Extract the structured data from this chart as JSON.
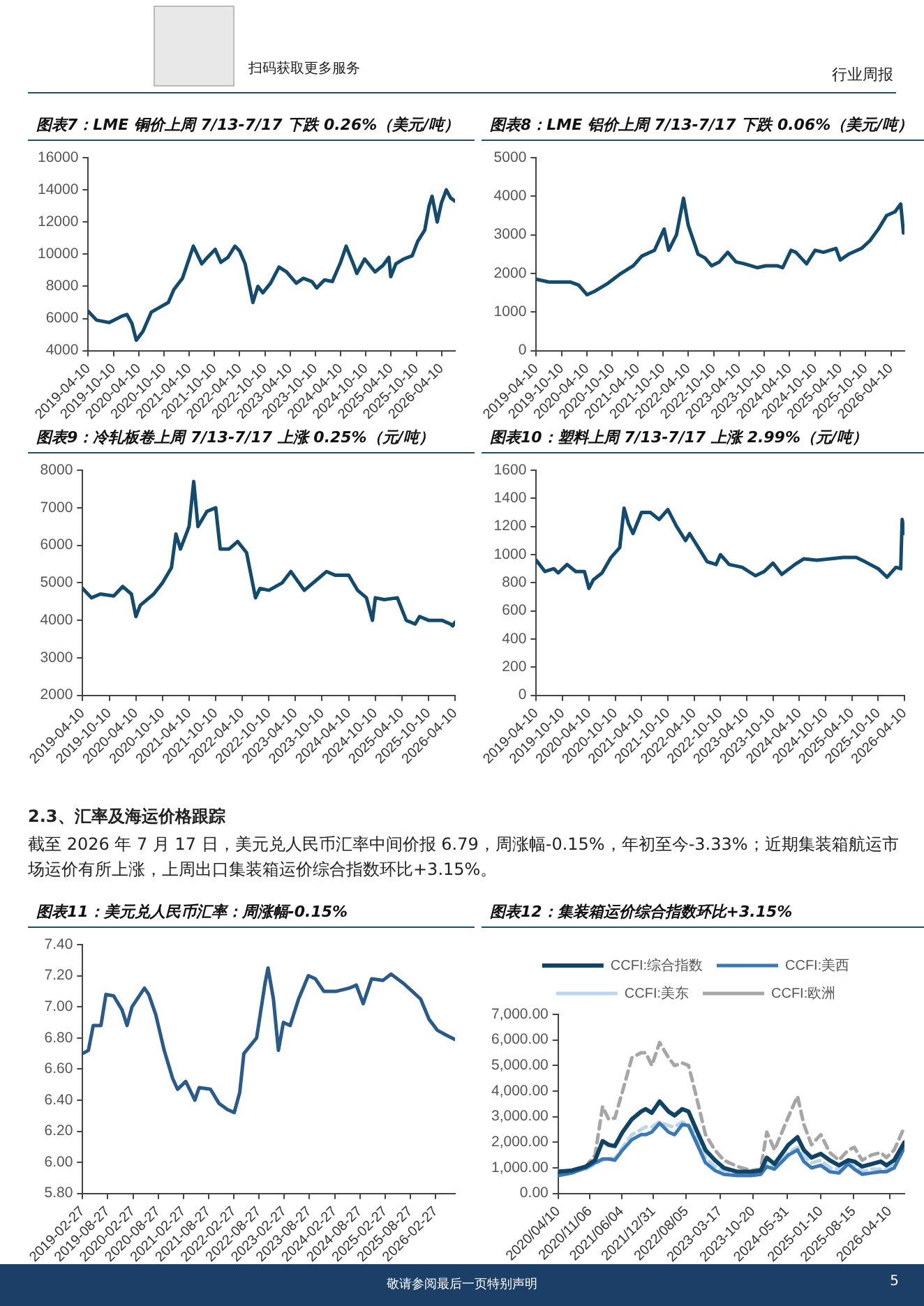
{
  "chart_data": [
    {
      "type": "line",
      "title": "图表7：LME 铜价上周 7/13-7/17 下跌 0.26%（美元/吨）",
      "marker": "none",
      "x": [
        "2019-04-10",
        "2019-06-10",
        "2019-09-10",
        "2019-12-10",
        "2020-01-15",
        "2020-02-20",
        "2020-03-23",
        "2020-05-10",
        "2020-07-10",
        "2020-09-10",
        "2020-11-10",
        "2020-12-20",
        "2021-02-20",
        "2021-05-10",
        "2021-07-10",
        "2021-08-20",
        "2021-10-15",
        "2021-11-25",
        "2022-01-15",
        "2022-03-07",
        "2022-04-10",
        "2022-05-20",
        "2022-07-15",
        "2022-08-20",
        "2022-09-25",
        "2022-11-20",
        "2023-01-20",
        "2023-03-15",
        "2023-05-25",
        "2023-07-15",
        "2023-09-15",
        "2023-10-20",
        "2023-12-15",
        "2024-02-10",
        "2024-04-10",
        "2024-05-20",
        "2024-07-15",
        "2024-08-05",
        "2024-10-01",
        "2024-12-15",
        "2025-02-10",
        "2025-03-25",
        "2025-04-08",
        "2025-05-15",
        "2025-07-10",
        "2025-09-10",
        "2025-10-20",
        "2025-12-10",
        "2026-01-10",
        "2026-02-01",
        "2026-03-10",
        "2026-04-10",
        "2026-05-15",
        "2026-06-15",
        "2026-07-17"
      ],
      "series": [
        {
          "color": "#124b6e",
          "values": [
            6450,
            5900,
            5750,
            6150,
            6250,
            5700,
            4650,
            5200,
            6400,
            6700,
            7000,
            7800,
            8500,
            10500,
            9400,
            9800,
            10300,
            9500,
            9800,
            10500,
            10200,
            9400,
            7000,
            8000,
            7600,
            8200,
            9200,
            8900,
            8200,
            8500,
            8300,
            7900,
            8400,
            8300,
            9500,
            10500,
            9300,
            8800,
            9700,
            8900,
            9300,
            9800,
            8600,
            9400,
            9700,
            9900,
            10800,
            11500,
            13000,
            13600,
            12000,
            13200,
            14000,
            13500,
            13300
          ]
        }
      ],
      "xlim": [
        "2019-04-10",
        "2026-07-17"
      ],
      "xticks": [
        "2019-04-10",
        "2019-10-10",
        "2020-04-10",
        "2020-10-10",
        "2021-04-10",
        "2021-10-10",
        "2022-04-10",
        "2022-10-10",
        "2023-04-10",
        "2023-10-10",
        "2024-04-10",
        "2024-10-10",
        "2025-04-10",
        "2025-10-10",
        "2026-04-10"
      ],
      "ylim": [
        4000,
        16000
      ],
      "yticks": [
        4000,
        6000,
        8000,
        10000,
        12000,
        14000,
        16000
      ]
    },
    {
      "type": "line",
      "title": "图表8：LME 铝价上周 7/13-7/17 下跌 0.06%（美元/吨）",
      "marker": "none",
      "x": [
        "2019-04-10",
        "2019-07-10",
        "2019-12-10",
        "2020-02-10",
        "2020-04-10",
        "2020-06-10",
        "2020-09-10",
        "2020-12-10",
        "2021-03-10",
        "2021-05-10",
        "2021-08-10",
        "2021-10-18",
        "2021-11-20",
        "2022-01-15",
        "2022-03-07",
        "2022-04-10",
        "2022-06-20",
        "2022-08-10",
        "2022-09-25",
        "2022-11-20",
        "2023-01-20",
        "2023-03-20",
        "2023-05-20",
        "2023-08-20",
        "2023-10-20",
        "2024-01-10",
        "2024-02-20",
        "2024-04-20",
        "2024-05-25",
        "2024-08-10",
        "2024-10-10",
        "2024-12-10",
        "2025-03-10",
        "2025-04-10",
        "2025-06-10",
        "2025-09-10",
        "2025-11-10",
        "2026-01-10",
        "2026-03-10",
        "2026-05-10",
        "2026-06-20",
        "2026-07-10",
        "2026-07-17"
      ],
      "series": [
        {
          "color": "#124b6e",
          "values": [
            1850,
            1780,
            1780,
            1700,
            1450,
            1550,
            1750,
            2000,
            2200,
            2450,
            2600,
            3150,
            2600,
            3000,
            3950,
            3250,
            2500,
            2400,
            2200,
            2300,
            2550,
            2300,
            2250,
            2150,
            2200,
            2200,
            2150,
            2600,
            2550,
            2250,
            2600,
            2550,
            2650,
            2350,
            2500,
            2650,
            2850,
            3150,
            3500,
            3600,
            3800,
            3050,
            3150
          ]
        }
      ],
      "xlim": [
        "2019-04-10",
        "2026-07-17"
      ],
      "xticks": [
        "2019-04-10",
        "2019-10-10",
        "2020-04-10",
        "2020-10-10",
        "2021-04-10",
        "2021-10-10",
        "2022-04-10",
        "2022-10-10",
        "2023-04-10",
        "2023-10-10",
        "2024-04-10",
        "2024-10-10",
        "2025-04-10",
        "2025-10-10",
        "2026-04-10"
      ],
      "ylim": [
        0,
        5000
      ],
      "yticks": [
        0,
        1000,
        2000,
        3000,
        4000,
        5000
      ]
    },
    {
      "type": "line",
      "title": "图表9：冷轧板卷上周 7/13-7/17 上涨 0.25%（元/吨）",
      "marker": "none",
      "x": [
        "2019-04-10",
        "2019-06-10",
        "2019-08-10",
        "2019-11-10",
        "2020-01-10",
        "2020-03-10",
        "2020-04-10",
        "2020-05-10",
        "2020-08-10",
        "2020-10-10",
        "2020-12-10",
        "2021-01-10",
        "2021-02-10",
        "2021-04-10",
        "2021-05-12",
        "2021-06-10",
        "2021-08-10",
        "2021-10-10",
        "2021-11-10",
        "2022-01-10",
        "2022-03-10",
        "2022-05-10",
        "2022-07-10",
        "2022-08-10",
        "2022-10-10",
        "2023-01-10",
        "2023-03-10",
        "2023-06-10",
        "2023-09-10",
        "2023-11-10",
        "2024-01-10",
        "2024-04-10",
        "2024-06-10",
        "2024-08-10",
        "2024-09-20",
        "2024-10-10",
        "2024-12-10",
        "2025-03-10",
        "2025-05-10",
        "2025-07-10",
        "2025-08-10",
        "2025-10-10",
        "2026-01-10",
        "2026-03-10",
        "2026-03-25",
        "2026-04-10"
      ],
      "series": [
        {
          "color": "#124b6e",
          "values": [
            4850,
            4600,
            4700,
            4650,
            4900,
            4700,
            4100,
            4400,
            4700,
            5000,
            5400,
            6300,
            5900,
            6500,
            7700,
            6500,
            6900,
            7000,
            5900,
            5900,
            6100,
            5800,
            4600,
            4850,
            4800,
            5000,
            5300,
            4800,
            5100,
            5300,
            5200,
            5200,
            4800,
            4600,
            4000,
            4600,
            4550,
            4600,
            4000,
            3900,
            4100,
            4000,
            4000,
            3900,
            3850,
            3950
          ]
        }
      ],
      "xlim": [
        "2019-04-10",
        "2026-04-10"
      ],
      "xticks": [
        "2019-04-10",
        "2019-10-10",
        "2020-04-10",
        "2020-10-10",
        "2021-04-10",
        "2021-10-10",
        "2022-04-10",
        "2022-10-10",
        "2023-04-10",
        "2023-10-10",
        "2024-04-10",
        "2024-10-10",
        "2025-04-10",
        "2025-10-10",
        "2026-04-10"
      ],
      "ylim": [
        2000,
        8000
      ],
      "yticks": [
        2000,
        3000,
        4000,
        5000,
        6000,
        7000,
        8000
      ]
    },
    {
      "type": "line",
      "title": "图表10：塑料上周 7/13-7/17 上涨 2.99%（元/吨）",
      "marker": "none",
      "x": [
        "2019-04-10",
        "2019-06-10",
        "2019-08-10",
        "2019-09-10",
        "2019-11-10",
        "2020-01-10",
        "2020-03-10",
        "2020-04-10",
        "2020-05-10",
        "2020-07-10",
        "2020-09-10",
        "2020-11-10",
        "2020-12-10",
        "2021-01-10",
        "2021-02-10",
        "2021-04-10",
        "2021-06-10",
        "2021-08-10",
        "2021-10-10",
        "2021-12-10",
        "2022-02-10",
        "2022-03-10",
        "2022-05-10",
        "2022-07-10",
        "2022-09-10",
        "2022-10-10",
        "2022-12-10",
        "2023-03-10",
        "2023-06-10",
        "2023-08-10",
        "2023-10-10",
        "2023-12-10",
        "2024-03-10",
        "2024-05-10",
        "2024-08-10",
        "2024-11-10",
        "2025-02-10",
        "2025-05-10",
        "2025-07-10",
        "2025-10-10",
        "2025-12-10",
        "2026-02-10",
        "2026-03-15",
        "2026-03-25",
        "2026-04-10"
      ],
      "series": [
        {
          "color": "#124b6e",
          "values": [
            960,
            880,
            900,
            870,
            930,
            880,
            880,
            760,
            820,
            870,
            980,
            1050,
            1330,
            1220,
            1150,
            1300,
            1300,
            1250,
            1320,
            1200,
            1100,
            1150,
            1050,
            950,
            930,
            1000,
            930,
            910,
            850,
            880,
            940,
            860,
            930,
            970,
            960,
            970,
            980,
            980,
            950,
            900,
            840,
            910,
            900,
            1250,
            1150
          ]
        }
      ],
      "xlim": [
        "2019-04-10",
        "2026-04-10"
      ],
      "xticks": [
        "2019-04-10",
        "2019-10-10",
        "2020-04-10",
        "2020-10-10",
        "2021-04-10",
        "2021-10-10",
        "2022-04-10",
        "2022-10-10",
        "2023-04-10",
        "2023-10-10",
        "2024-04-10",
        "2024-10-10",
        "2025-04-10",
        "2025-10-10",
        "2026-04-10"
      ],
      "ylim": [
        0,
        1600
      ],
      "yticks": [
        0,
        200,
        400,
        600,
        800,
        1000,
        1200,
        1400,
        1600
      ]
    },
    {
      "type": "line",
      "title": "图表11：美元兑人民币汇率：周涨幅-0.15%",
      "marker": "none",
      "x": [
        "2019-02-27",
        "2019-04-10",
        "2019-05-15",
        "2019-07-10",
        "2019-08-15",
        "2019-10-10",
        "2019-12-10",
        "2020-01-15",
        "2020-02-20",
        "2020-05-20",
        "2020-06-20",
        "2020-08-10",
        "2020-10-10",
        "2020-12-10",
        "2021-01-15",
        "2021-03-15",
        "2021-05-20",
        "2021-06-20",
        "2021-09-10",
        "2021-11-10",
        "2022-01-10",
        "2022-03-01",
        "2022-04-10",
        "2022-05-10",
        "2022-08-10",
        "2022-10-10",
        "2022-11-01",
        "2022-12-10",
        "2023-01-15",
        "2023-02-20",
        "2023-04-10",
        "2023-06-10",
        "2023-08-20",
        "2023-10-10",
        "2023-12-10",
        "2024-03-10",
        "2024-06-10",
        "2024-08-01",
        "2024-09-20",
        "2024-11-20",
        "2025-02-10",
        "2025-04-10",
        "2025-07-10",
        "2025-09-10",
        "2025-11-10",
        "2026-01-10",
        "2026-03-10",
        "2026-05-10",
        "2026-07-17"
      ],
      "series": [
        {
          "color": "#2a5a8a",
          "values": [
            6.7,
            6.72,
            6.88,
            6.88,
            7.08,
            7.07,
            6.98,
            6.88,
            7.0,
            7.12,
            7.08,
            6.95,
            6.72,
            6.54,
            6.47,
            6.52,
            6.4,
            6.48,
            6.47,
            6.38,
            6.34,
            6.32,
            6.45,
            6.7,
            6.8,
            7.15,
            7.25,
            7.05,
            6.72,
            6.9,
            6.88,
            7.05,
            7.2,
            7.18,
            7.1,
            7.1,
            7.12,
            7.14,
            7.02,
            7.18,
            7.17,
            7.21,
            7.15,
            7.1,
            7.05,
            6.92,
            6.85,
            6.82,
            6.79
          ]
        }
      ],
      "xlim": [
        "2019-02-27",
        "2026-07-17"
      ],
      "xticks": [
        "2019-02-27",
        "2019-08-27",
        "2020-02-27",
        "2020-08-27",
        "2021-02-27",
        "2021-08-27",
        "2022-02-27",
        "2022-08-27",
        "2023-02-27",
        "2023-08-27",
        "2024-02-27",
        "2024-08-27",
        "2025-02-27",
        "2025-08-27",
        "2026-02-27"
      ],
      "ylim": [
        5.8,
        7.4
      ],
      "yticks": [
        {
          "value": 5.8,
          "label": "5.80"
        },
        {
          "value": 6.0,
          "label": "6.00"
        },
        {
          "value": 6.2,
          "label": "6.20"
        },
        {
          "value": 6.4,
          "label": "6.40"
        },
        {
          "value": 6.6,
          "label": "6.60"
        },
        {
          "value": 6.8,
          "label": "6.80"
        },
        {
          "value": 7.0,
          "label": "7.00"
        },
        {
          "value": 7.2,
          "label": "7.20"
        },
        {
          "value": 7.4,
          "label": "7.40"
        }
      ]
    },
    {
      "type": "line",
      "title": "图表12：集装箱运价综合指数环比+3.15%",
      "marker": "none",
      "legend": "top",
      "x": [
        "2020-04-10",
        "2020-07-10",
        "2020-10-10",
        "2020-12-10",
        "2021-01-29",
        "2021-03-10",
        "2021-04-20",
        "2021-06-10",
        "2021-08-10",
        "2021-10-10",
        "2021-11-10",
        "2021-12-20",
        "2022-02-10",
        "2022-04-10",
        "2022-05-20",
        "2022-07-10",
        "2022-08-20",
        "2022-10-10",
        "2022-12-10",
        "2023-02-10",
        "2023-04-10",
        "2023-07-10",
        "2023-10-10",
        "2023-12-10",
        "2024-01-19",
        "2024-03-10",
        "2024-06-10",
        "2024-08-09",
        "2024-09-20",
        "2024-11-10",
        "2025-01-10",
        "2025-03-10",
        "2025-05-10",
        "2025-07-10",
        "2025-08-20",
        "2025-10-10",
        "2025-12-10",
        "2026-02-10",
        "2026-03-20",
        "2026-05-10",
        "2026-07-17"
      ],
      "series": [
        {
          "name": "CCFI:综合指数",
          "color": "#0f4466",
          "values": [
            850,
            900,
            1050,
            1300,
            2050,
            1900,
            1850,
            2400,
            2900,
            3200,
            3300,
            3150,
            3600,
            3200,
            3050,
            3300,
            3200,
            2500,
            1700,
            1300,
            1000,
            850,
            850,
            900,
            1400,
            1150,
            1900,
            2200,
            1700,
            1400,
            1550,
            1300,
            1100,
            1300,
            1250,
            1050,
            1150,
            1250,
            1100,
            1300,
            2000
          ]
        },
        {
          "name": "CCFI:美西",
          "color": "#3b78b4",
          "values": [
            700,
            800,
            1000,
            1200,
            1350,
            1350,
            1300,
            1700,
            2100,
            2300,
            2300,
            2400,
            2750,
            2400,
            2300,
            2700,
            2650,
            2000,
            1200,
            900,
            750,
            700,
            700,
            750,
            1050,
            950,
            1500,
            1700,
            1250,
            1000,
            1100,
            850,
            800,
            1150,
            950,
            750,
            800,
            850,
            850,
            1000,
            1800
          ]
        },
        {
          "name": "CCFI:美东",
          "color": "#b9d5ef",
          "line_style": "dashed",
          "values": [
            900,
            850,
            950,
            1150,
            1300,
            1400,
            1350,
            1800,
            2300,
            2500,
            2600,
            2600,
            2800,
            2650,
            2600,
            2800,
            2700,
            2200,
            1400,
            1050,
            900,
            800,
            800,
            850,
            1150,
            1000,
            1600,
            1800,
            1450,
            1200,
            1300,
            1000,
            950,
            1250,
            1050,
            850,
            950,
            950,
            950,
            1100,
            1700
          ]
        },
        {
          "name": "CCFI:欧洲",
          "color": "#a6a6a6",
          "line_style": "dashed",
          "values": [
            900,
            850,
            1050,
            1500,
            3400,
            2900,
            2950,
            4000,
            5300,
            5500,
            5500,
            5000,
            5900,
            5300,
            5000,
            5100,
            5000,
            3800,
            2300,
            1700,
            1300,
            1050,
            900,
            950,
            2400,
            1700,
            3000,
            3800,
            2700,
            1900,
            2300,
            1600,
            1300,
            1700,
            1800,
            1300,
            1500,
            1600,
            1400,
            1700,
            2600
          ]
        }
      ],
      "xlim": [
        "2020-04-10",
        "2026-07-17"
      ],
      "xticks": [
        {
          "value": "2020-04-10",
          "label": "2020/04/10"
        },
        {
          "value": "2020-11-06",
          "label": "2020/11/06"
        },
        {
          "value": "2021-06-04",
          "label": "2021/06/04"
        },
        {
          "value": "2021-12-31",
          "label": "2021/12/31"
        },
        {
          "value": "2022-08-05",
          "label": "2022/08/05"
        },
        "2023-03-17",
        "2023-10-20",
        "2024-05-31",
        "2025-01-10",
        "2025-08-15",
        "2026-04-10"
      ],
      "ylim": [
        0,
        7000
      ],
      "yticks": [
        {
          "value": 0,
          "label": "0.00"
        },
        {
          "value": 1000,
          "label": "1,000.00"
        },
        {
          "value": 2000,
          "label": "2,000.00"
        },
        {
          "value": 3000,
          "label": "3,000.00"
        },
        {
          "value": 4000,
          "label": "4,000.00"
        },
        {
          "value": 5000,
          "label": "5,000.00"
        },
        {
          "value": 6000,
          "label": "6,000.00"
        },
        {
          "value": 7000,
          "label": "7,000.00"
        }
      ]
    },
    {
      "type": "other",
      "annotations": [
        "扫码获取更多服务",
        "行业周报",
        "2.3、汇率及海运价格跟踪",
        "截至 2026 年 7 月 17 日，美元兑人民币汇率中间价报 6.79，周涨幅-0.15%，年初至今-3.33%；近期集装箱航运市场运价有所上涨，上周出口集装箱运价综合指数环比+3.15%。",
        "敬请参阅最后一页特别声明",
        "5"
      ]
    }
  ]
}
